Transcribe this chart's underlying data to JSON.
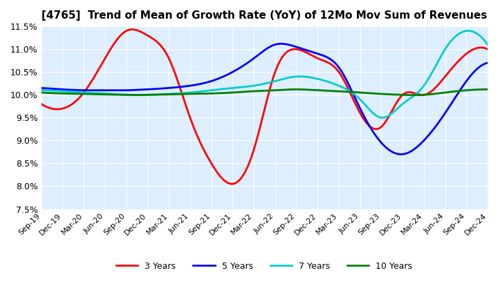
{
  "title": "[4765]  Trend of Mean of Growth Rate (YoY) of 12Mo Mov Sum of Revenues",
  "ylim": [
    0.075,
    0.115
  ],
  "yticks": [
    0.075,
    0.08,
    0.085,
    0.09,
    0.095,
    0.1,
    0.105,
    0.11,
    0.115
  ],
  "ytick_labels": [
    "7.5%",
    "8.0%",
    "8.5%",
    "9.0%",
    "9.5%",
    "10.0%",
    "10.5%",
    "11.0%",
    "11.5%"
  ],
  "xtick_labels": [
    "Sep-19",
    "Dec-19",
    "Mar-20",
    "Jun-20",
    "Sep-20",
    "Dec-20",
    "Mar-21",
    "Jun-21",
    "Sep-21",
    "Dec-21",
    "Mar-22",
    "Jun-22",
    "Sep-22",
    "Dec-22",
    "Mar-23",
    "Jun-23",
    "Sep-23",
    "Dec-23",
    "Mar-24",
    "Jun-24",
    "Sep-24",
    "Dec-24"
  ],
  "line_3y_color": "#ff0000",
  "line_5y_color": "#0000ff",
  "line_7y_color": "#00cccc",
  "line_10y_color": "#008000",
  "legend_labels": [
    "3 Years",
    "5 Years",
    "7 Years",
    "10 Years"
  ],
  "background_color": "#ffffff",
  "plot_bg_color": "#ddeeff",
  "grid_color": "#ffffff"
}
